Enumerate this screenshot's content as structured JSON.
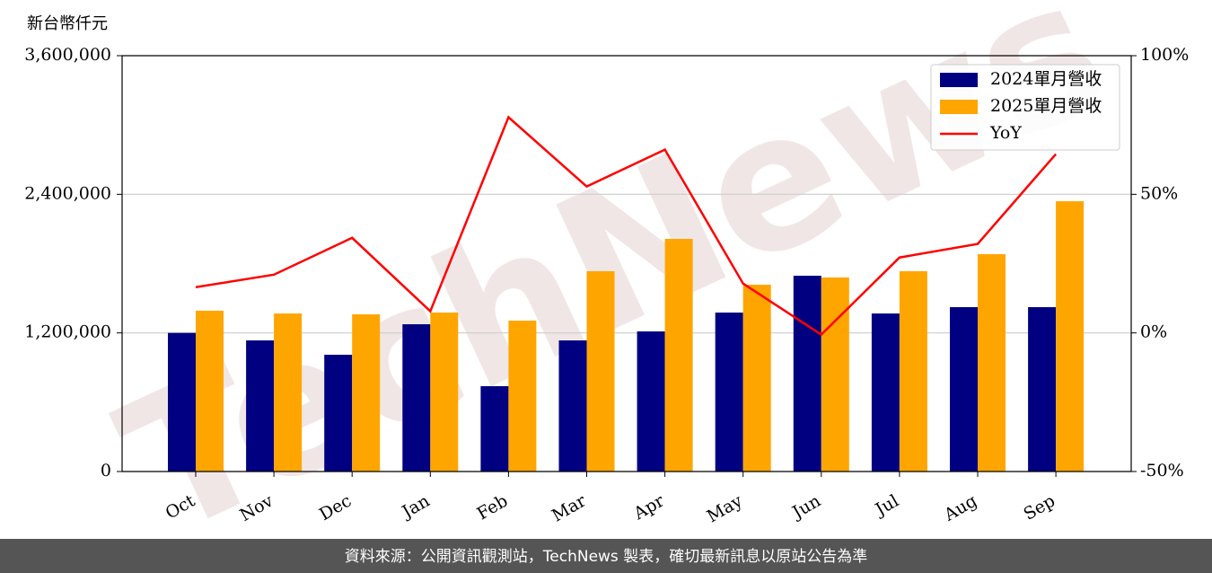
{
  "chart_data": {
    "type": "bar-line",
    "y_label": "新台幣仟元",
    "watermark": "TechNews",
    "footer": "資料來源：公開資訊觀測站，TechNews 製表，確切最新訊息以原站公告為準",
    "categories": [
      "Oct",
      "Nov",
      "Dec",
      "Jan",
      "Feb",
      "Mar",
      "Apr",
      "May",
      "Jun",
      "Jul",
      "Aug",
      "Sep"
    ],
    "series": [
      {
        "name": "2024單月營收",
        "color": "#000080",
        "kind": "bar",
        "values": [
          1200000,
          1135000,
          1011000,
          1275000,
          739000,
          1135000,
          1213000,
          1376000,
          1695000,
          1368000,
          1423000,
          1423000
        ]
      },
      {
        "name": "2025單月營收",
        "color": "#ffa500",
        "kind": "bar",
        "values": [
          1392000,
          1368000,
          1361000,
          1376000,
          1306000,
          1734000,
          2014000,
          1617000,
          1680000,
          1734000,
          1882000,
          2340000
        ]
      },
      {
        "name": "YoY",
        "color": "#ff0000",
        "kind": "line",
        "axis": "y2",
        "values": [
          16.5,
          21,
          34.3,
          7.8,
          77.8,
          52.8,
          66.1,
          17.8,
          -0.6,
          27.2,
          32.1,
          64.5
        ]
      }
    ],
    "ylim": [
      0,
      3600000
    ],
    "yticks": [
      0,
      {
        "value": 1200000,
        "label": "1,200,000"
      },
      {
        "value": 2400000,
        "label": "2,400,000"
      },
      {
        "value": 3600000,
        "label": "3,600,000"
      }
    ],
    "y2lim": [
      -50,
      100
    ],
    "y2ticks": [
      {
        "value": -50,
        "label": "-50%"
      },
      {
        "value": 0,
        "label": "0%"
      },
      {
        "value": 50,
        "label": "50%"
      },
      {
        "value": 100,
        "label": "100%"
      }
    ],
    "grid": true,
    "legend": "upper right"
  }
}
